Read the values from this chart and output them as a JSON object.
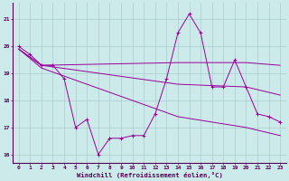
{
  "title": "",
  "xlabel": "Windchill (Refroidissement éolien,°C)",
  "ylabel": "",
  "background_color": "#cceaea",
  "grid_color": "#aacccc",
  "line_color": "#990099",
  "xlim": [
    -0.5,
    23.5
  ],
  "ylim": [
    15.7,
    21.6
  ],
  "yticks": [
    16,
    17,
    18,
    19,
    20,
    21
  ],
  "xticks": [
    0,
    1,
    2,
    3,
    4,
    5,
    6,
    7,
    8,
    9,
    10,
    11,
    12,
    13,
    14,
    15,
    16,
    17,
    18,
    19,
    20,
    21,
    22,
    23
  ],
  "series": [
    {
      "x": [
        0,
        1,
        2,
        3,
        4,
        5,
        6,
        7,
        8,
        9,
        10,
        11,
        12,
        13,
        14,
        15,
        16,
        17,
        18,
        19,
        20,
        21,
        22,
        23
      ],
      "y": [
        20.0,
        19.7,
        19.3,
        19.3,
        18.8,
        17.0,
        17.3,
        16.0,
        16.6,
        16.6,
        16.7,
        16.7,
        17.5,
        18.8,
        20.5,
        21.2,
        20.5,
        18.5,
        18.5,
        19.5,
        18.5,
        17.5,
        17.4,
        17.2
      ],
      "marker": "+"
    },
    {
      "x": [
        0,
        2,
        14,
        20,
        23
      ],
      "y": [
        19.9,
        19.3,
        19.4,
        19.4,
        19.3
      ],
      "marker": null
    },
    {
      "x": [
        0,
        2,
        14,
        20,
        23
      ],
      "y": [
        19.9,
        19.3,
        18.6,
        18.5,
        18.2
      ],
      "marker": null
    },
    {
      "x": [
        0,
        2,
        14,
        20,
        23
      ],
      "y": [
        19.9,
        19.2,
        17.4,
        17.0,
        16.7
      ],
      "marker": null
    }
  ]
}
